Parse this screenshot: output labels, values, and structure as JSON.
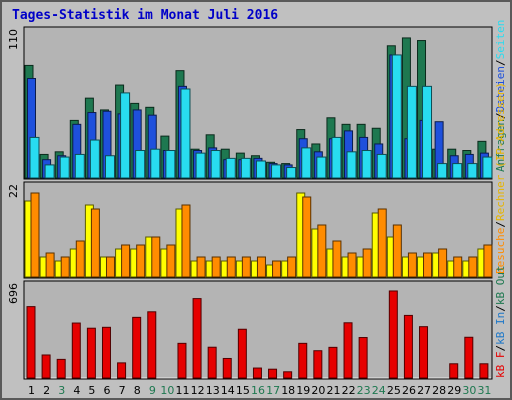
{
  "title": "Tages-Statistik im Monat Juli 2016",
  "colors": {
    "background": "#c0c0c0",
    "plot": "#b4b4b4",
    "title": "#0000c8",
    "anfragen": "#1e7850",
    "dateien": "#1e50dc",
    "seiten": "#28dcf0",
    "besuche": "#ff8c00",
    "rechner": "#ffff00",
    "kbf": "#e60000",
    "kbin": "#1e7850",
    "kbout": "#1e7850",
    "weekend_label": "#1e7850"
  },
  "legends": {
    "top": [
      {
        "text": "Anfragen",
        "color": "#1e7850"
      },
      {
        "text": "Dateien",
        "color": "#1e50dc"
      },
      {
        "text": "Seiten",
        "color": "#28dcf0"
      }
    ],
    "middle": [
      {
        "text": "Besuche",
        "color": "#ff8c00"
      },
      {
        "text": "Rechner (IP-Adressen)",
        "color": "#e6b400"
      }
    ],
    "bottom": [
      {
        "text": "kB F",
        "color": "#e60000"
      },
      {
        "text": "kB In",
        "color": "#1e78c8"
      },
      {
        "text": "kB Out",
        "color": "#1e7850"
      }
    ],
    "separator": "/"
  },
  "chart_data": [
    {
      "type": "bar",
      "panel": "top",
      "ymax_label": "110",
      "ylim": [
        0,
        110
      ],
      "categories": [
        "1",
        "2",
        "3",
        "4",
        "5",
        "6",
        "7",
        "8",
        "9",
        "10",
        "11",
        "12",
        "13",
        "14",
        "15",
        "16",
        "17",
        "18",
        "19",
        "20",
        "21",
        "22",
        "23",
        "24",
        "25",
        "26",
        "27",
        "28",
        "29",
        "30",
        "31"
      ],
      "series": [
        {
          "name": "Anfragen",
          "values": [
            86,
            18,
            20,
            44,
            61,
            52,
            71,
            57,
            54,
            32,
            82,
            22,
            33,
            22,
            19,
            17,
            12,
            11,
            37,
            26,
            46,
            41,
            41,
            38,
            101,
            107,
            105,
            22,
            22,
            21,
            28
          ]
        },
        {
          "name": "Dateien",
          "values": [
            76,
            14,
            17,
            41,
            50,
            51,
            49,
            52,
            48,
            21,
            70,
            21,
            23,
            14,
            14,
            15,
            11,
            10,
            30,
            20,
            30,
            36,
            31,
            26,
            94,
            30,
            44,
            43,
            17,
            18,
            19
          ]
        },
        {
          "name": "Seiten",
          "values": [
            31,
            10,
            16,
            18,
            29,
            17,
            65,
            21,
            22,
            21,
            68,
            19,
            21,
            15,
            15,
            13,
            10,
            8,
            23,
            16,
            31,
            20,
            21,
            18,
            94,
            70,
            70,
            11,
            11,
            11,
            16
          ]
        }
      ]
    },
    {
      "type": "bar",
      "panel": "middle",
      "ymax_label": "22",
      "ylim": [
        0,
        22
      ],
      "categories": [
        "1",
        "2",
        "3",
        "4",
        "5",
        "6",
        "7",
        "8",
        "9",
        "10",
        "11",
        "12",
        "13",
        "14",
        "15",
        "16",
        "17",
        "18",
        "19",
        "20",
        "21",
        "22",
        "23",
        "24",
        "25",
        "26",
        "27",
        "28",
        "29",
        "30",
        "31"
      ],
      "series": [
        {
          "name": "Besuche",
          "values": [
            21,
            6,
            5,
            9,
            17,
            5,
            8,
            8,
            10,
            8,
            18,
            5,
            5,
            5,
            5,
            5,
            4,
            5,
            20,
            13,
            9,
            6,
            7,
            17,
            13,
            6,
            6,
            7,
            5,
            5,
            8
          ]
        },
        {
          "name": "Rechner (IP-Adressen)",
          "values": [
            19,
            5,
            4,
            7,
            18,
            5,
            7,
            7,
            10,
            7,
            17,
            4,
            4,
            4,
            4,
            4,
            3,
            4,
            21,
            12,
            7,
            5,
            5,
            16,
            10,
            5,
            5,
            6,
            4,
            4,
            7
          ]
        }
      ]
    },
    {
      "type": "bar",
      "panel": "bottom",
      "ymax_label": "696",
      "ylim": [
        0,
        696
      ],
      "categories": [
        "1",
        "2",
        "3",
        "4",
        "5",
        "6",
        "7",
        "8",
        "9",
        "10",
        "11",
        "12",
        "13",
        "14",
        "15",
        "16",
        "17",
        "18",
        "19",
        "20",
        "21",
        "22",
        "23",
        "24",
        "25",
        "26",
        "27",
        "28",
        "29",
        "30",
        "31"
      ],
      "series": [
        {
          "name": "kB F",
          "values": [
            552,
            178,
            144,
            425,
            385,
            392,
            117,
            469,
            512,
            0,
            268,
            614,
            238,
            151,
            377,
            77,
            68,
            48,
            268,
            211,
            237,
            427,
            313,
            0,
            673,
            484,
            397,
            0,
            110,
            315,
            110
          ]
        }
      ]
    }
  ],
  "weekend_days": [
    "3",
    "9",
    "10",
    "16",
    "17",
    "23",
    "24",
    "30",
    "31"
  ]
}
